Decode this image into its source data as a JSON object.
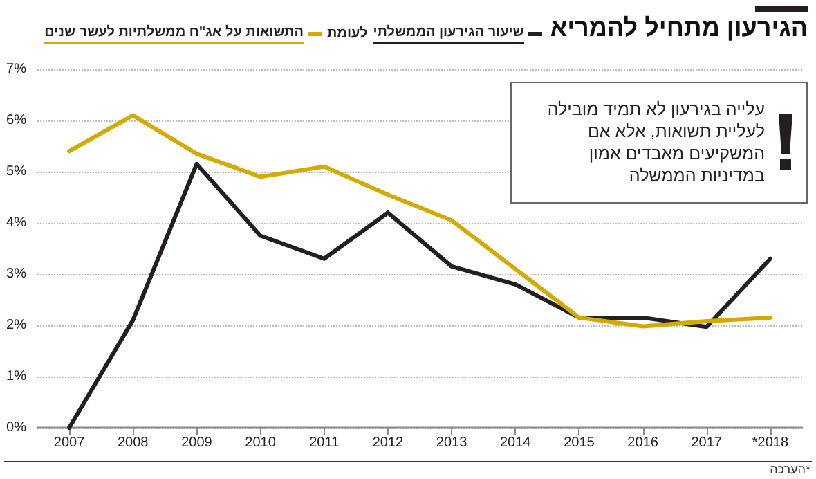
{
  "chart_data": {
    "type": "line",
    "title": "הגירעון מתחיל להמריא",
    "subtitle": "לעומת",
    "categories": [
      "2007",
      "2008",
      "2009",
      "2010",
      "2011",
      "2012",
      "2013",
      "2014",
      "2015",
      "2016",
      "2017",
      "*2018"
    ],
    "series": [
      {
        "name": "שיעור הגירעון הממשלתי",
        "color": "#231f20",
        "values": [
          0,
          2.1,
          5.15,
          3.75,
          3.3,
          4.2,
          3.15,
          2.8,
          2.15,
          2.15,
          1.97,
          3.3
        ]
      },
      {
        "name": "התשואות על אג\"ח ממשלתיות לעשר שנים",
        "color": "#d4aa00",
        "values": [
          5.4,
          6.1,
          5.35,
          4.9,
          5.1,
          4.55,
          4.05,
          3.1,
          2.15,
          1.98,
          2.08,
          2.15
        ]
      }
    ],
    "ylim": [
      0,
      7
    ],
    "yticks": [
      {
        "value": 0,
        "label": "0%"
      },
      {
        "value": 1,
        "label": "1%"
      },
      {
        "value": 2,
        "label": "2%"
      },
      {
        "value": 3,
        "label": "3%"
      },
      {
        "value": 4,
        "label": "4%"
      },
      {
        "value": 5,
        "label": "5%"
      },
      {
        "value": 6,
        "label": "6%"
      },
      {
        "value": 7,
        "label": "7%"
      }
    ],
    "grid": "y",
    "legend": "top",
    "marker": "none",
    "line_style": "solid",
    "annotations": [
      "עלייה בגירעון לא תמיד מובילה לעליית תשואות, אלא אם המשקיעים מאבדים אמון במדיניות הממשלה",
      "*הערכה"
    ]
  }
}
